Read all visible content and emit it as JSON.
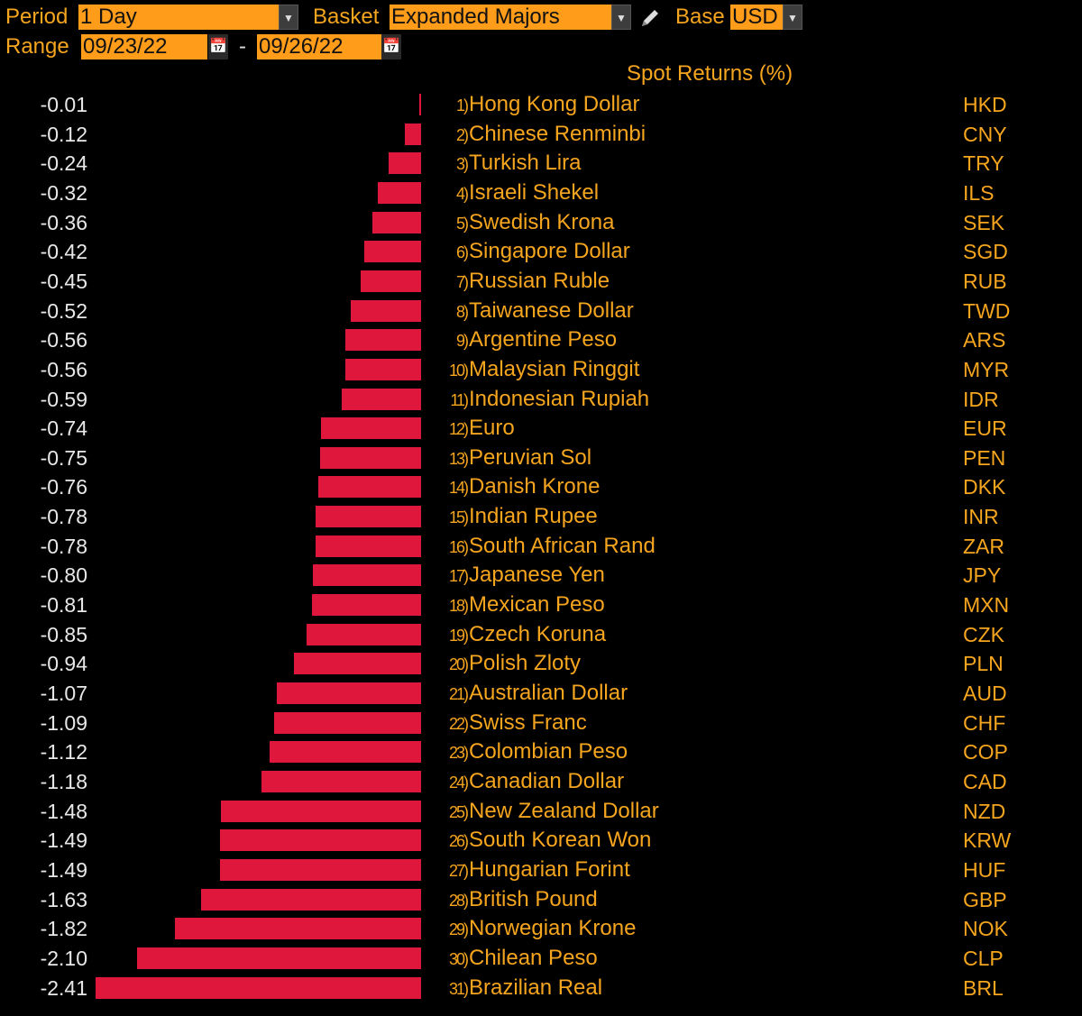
{
  "toolbar": {
    "period_label": "Period",
    "period_value": "1 Day",
    "basket_label": "Basket",
    "basket_value": "Expanded Majors",
    "base_label": "Base",
    "base_value": "USD",
    "range_label": "Range",
    "range_start": "09/23/22",
    "range_sep": "-",
    "range_end": "09/26/22"
  },
  "chart_header": "Spot Returns (%)",
  "colors": {
    "bar": "#e0173c",
    "accent": "#ff9c1a"
  },
  "chart_data": {
    "type": "bar",
    "orientation": "horizontal",
    "title": "Spot Returns (%)",
    "rows": [
      {
        "rank": "1)",
        "name": "Hong Kong Dollar",
        "code": "HKD",
        "value": -0.01
      },
      {
        "rank": "2)",
        "name": "Chinese Renminbi",
        "code": "CNY",
        "value": -0.12
      },
      {
        "rank": "3)",
        "name": "Turkish Lira",
        "code": "TRY",
        "value": -0.24
      },
      {
        "rank": "4)",
        "name": "Israeli Shekel",
        "code": "ILS",
        "value": -0.32
      },
      {
        "rank": "5)",
        "name": "Swedish Krona",
        "code": "SEK",
        "value": -0.36
      },
      {
        "rank": "6)",
        "name": "Singapore Dollar",
        "code": "SGD",
        "value": -0.42
      },
      {
        "rank": "7)",
        "name": "Russian Ruble",
        "code": "RUB",
        "value": -0.45
      },
      {
        "rank": "8)",
        "name": "Taiwanese Dollar",
        "code": "TWD",
        "value": -0.52
      },
      {
        "rank": "9)",
        "name": "Argentine Peso",
        "code": "ARS",
        "value": -0.56
      },
      {
        "rank": "10)",
        "name": "Malaysian Ringgit",
        "code": "MYR",
        "value": -0.56
      },
      {
        "rank": "11)",
        "name": "Indonesian Rupiah",
        "code": "IDR",
        "value": -0.59
      },
      {
        "rank": "12)",
        "name": "Euro",
        "code": "EUR",
        "value": -0.74
      },
      {
        "rank": "13)",
        "name": "Peruvian Sol",
        "code": "PEN",
        "value": -0.75
      },
      {
        "rank": "14)",
        "name": "Danish Krone",
        "code": "DKK",
        "value": -0.76
      },
      {
        "rank": "15)",
        "name": "Indian Rupee",
        "code": "INR",
        "value": -0.78
      },
      {
        "rank": "16)",
        "name": "South African Rand",
        "code": "ZAR",
        "value": -0.78
      },
      {
        "rank": "17)",
        "name": "Japanese Yen",
        "code": "JPY",
        "value": -0.8
      },
      {
        "rank": "18)",
        "name": "Mexican Peso",
        "code": "MXN",
        "value": -0.81
      },
      {
        "rank": "19)",
        "name": "Czech Koruna",
        "code": "CZK",
        "value": -0.85
      },
      {
        "rank": "20)",
        "name": "Polish Zloty",
        "code": "PLN",
        "value": -0.94
      },
      {
        "rank": "21)",
        "name": "Australian Dollar",
        "code": "AUD",
        "value": -1.07
      },
      {
        "rank": "22)",
        "name": "Swiss Franc",
        "code": "CHF",
        "value": -1.09
      },
      {
        "rank": "23)",
        "name": "Colombian Peso",
        "code": "COP",
        "value": -1.12
      },
      {
        "rank": "24)",
        "name": "Canadian Dollar",
        "code": "CAD",
        "value": -1.18
      },
      {
        "rank": "25)",
        "name": "New Zealand Dollar",
        "code": "NZD",
        "value": -1.48
      },
      {
        "rank": "26)",
        "name": "South Korean Won",
        "code": "KRW",
        "value": -1.49
      },
      {
        "rank": "27)",
        "name": "Hungarian Forint",
        "code": "HUF",
        "value": -1.49
      },
      {
        "rank": "28)",
        "name": "British Pound",
        "code": "GBP",
        "value": -1.63
      },
      {
        "rank": "29)",
        "name": "Norwegian Krone",
        "code": "NOK",
        "value": -1.82
      },
      {
        "rank": "30)",
        "name": "Chilean Peso",
        "code": "CLP",
        "value": -2.1
      },
      {
        "rank": "31)",
        "name": "Brazilian Real",
        "code": "BRL",
        "value": -2.41
      }
    ]
  }
}
